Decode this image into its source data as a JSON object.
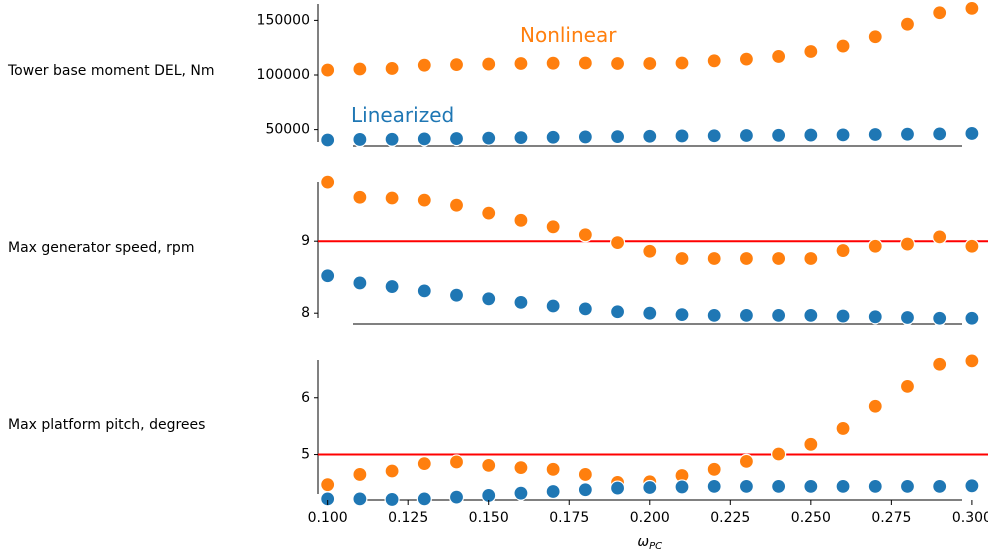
{
  "chart_data": {
    "type": "scatter",
    "xlabel": "ω",
    "xlabel_sub": "PC",
    "x": [
      0.1,
      0.11,
      0.12,
      0.13,
      0.14,
      0.15,
      0.16,
      0.17,
      0.18,
      0.19,
      0.2,
      0.21,
      0.22,
      0.23,
      0.24,
      0.25,
      0.26,
      0.27,
      0.28,
      0.29,
      0.3
    ],
    "xlim": [
      0.097,
      0.305
    ],
    "xticks": [
      "0.100",
      "0.125",
      "0.150",
      "0.175",
      "0.200",
      "0.225",
      "0.250",
      "0.275",
      "0.300"
    ],
    "colors": {
      "linearized": "#1f77b4",
      "nonlinear": "#ff7f0e",
      "limit": "#ff0000"
    },
    "annotations": {
      "nonlinear": "Nonlinear",
      "linearized": "Linearized"
    },
    "panels": [
      {
        "ylabel": "Tower base moment DEL, Nm",
        "ylim": [
          35000,
          165000
        ],
        "yticks": [
          "50000",
          "100000",
          "150000"
        ],
        "limit": null,
        "series": [
          {
            "name": "Linearized",
            "values": [
              40500,
              41000,
              41200,
              41500,
              41800,
              42200,
              42700,
              43000,
              43300,
              43600,
              43900,
              44200,
              44400,
              44600,
              44800,
              45000,
              45200,
              45500,
              45800,
              46100,
              46500
            ]
          },
          {
            "name": "Nonlinear",
            "values": [
              104500,
              105500,
              106000,
              109000,
              109500,
              110000,
              110500,
              110800,
              111000,
              110500,
              110500,
              111000,
              113000,
              114500,
              117000,
              121500,
              126500,
              135000,
              146500,
              157000,
              161000
            ]
          }
        ]
      },
      {
        "ylabel": "Max generator speed, rpm",
        "ylim": [
          7.85,
          9.85
        ],
        "yticks": [
          "8",
          "9"
        ],
        "limit": 9,
        "series": [
          {
            "name": "Linearized",
            "values": [
              8.52,
              8.42,
              8.37,
              8.31,
              8.25,
              8.2,
              8.15,
              8.1,
              8.06,
              8.02,
              8.0,
              7.98,
              7.97,
              7.97,
              7.97,
              7.97,
              7.96,
              7.95,
              7.94,
              7.93,
              7.93
            ]
          },
          {
            "name": "Nonlinear",
            "values": [
              9.82,
              9.61,
              9.6,
              9.57,
              9.5,
              9.39,
              9.29,
              9.2,
              9.09,
              8.98,
              8.86,
              8.76,
              8.76,
              8.76,
              8.76,
              8.76,
              8.87,
              8.93,
              8.96,
              9.06,
              8.93
            ]
          }
        ]
      },
      {
        "ylabel": "Max platform pitch, degrees",
        "ylim": [
          4.2,
          6.7
        ],
        "yticks": [
          "5",
          "6"
        ],
        "limit": 5,
        "series": [
          {
            "name": "Linearized",
            "values": [
              4.22,
              4.22,
              4.21,
              4.22,
              4.25,
              4.28,
              4.32,
              4.35,
              4.38,
              4.41,
              4.42,
              4.43,
              4.44,
              4.44,
              4.44,
              4.44,
              4.44,
              4.44,
              4.44,
              4.44,
              4.45
            ]
          },
          {
            "name": "Nonlinear",
            "values": [
              4.47,
              4.65,
              4.71,
              4.84,
              4.87,
              4.81,
              4.77,
              4.74,
              4.65,
              4.51,
              4.52,
              4.63,
              4.74,
              4.88,
              5.01,
              5.18,
              5.46,
              5.85,
              6.2,
              6.59,
              6.65
            ]
          }
        ]
      }
    ]
  }
}
